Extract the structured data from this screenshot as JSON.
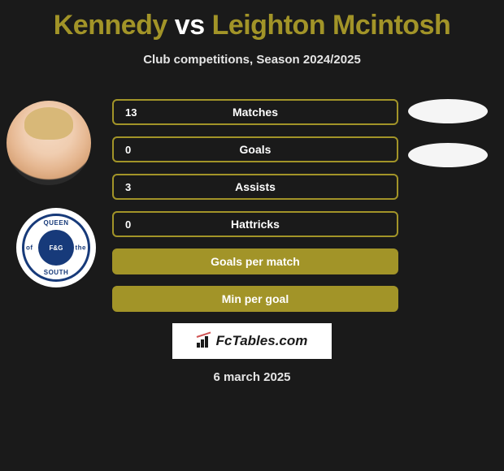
{
  "title": {
    "player1": "Kennedy",
    "vs": "vs",
    "player2": "Leighton Mcintosh"
  },
  "subtitle": "Club competitions, Season 2024/2025",
  "colors": {
    "accent": "#a29428",
    "background": "#1a1a1a",
    "text": "#ffffff",
    "badge_primary": "#173a7a",
    "white": "#ffffff"
  },
  "badge": {
    "top": "QUEEN",
    "left": "of",
    "right": "the",
    "bottom": "SOUTH",
    "core": "F&G"
  },
  "stats": [
    {
      "left_value": "13",
      "label": "Matches",
      "filled": false
    },
    {
      "left_value": "0",
      "label": "Goals",
      "filled": false
    },
    {
      "left_value": "3",
      "label": "Assists",
      "filled": false
    },
    {
      "left_value": "0",
      "label": "Hattricks",
      "filled": false
    },
    {
      "left_value": "",
      "label": "Goals per match",
      "filled": true
    },
    {
      "left_value": "",
      "label": "Min per goal",
      "filled": true
    }
  ],
  "footer_brand": "FcTables.com",
  "date": "6 march 2025"
}
